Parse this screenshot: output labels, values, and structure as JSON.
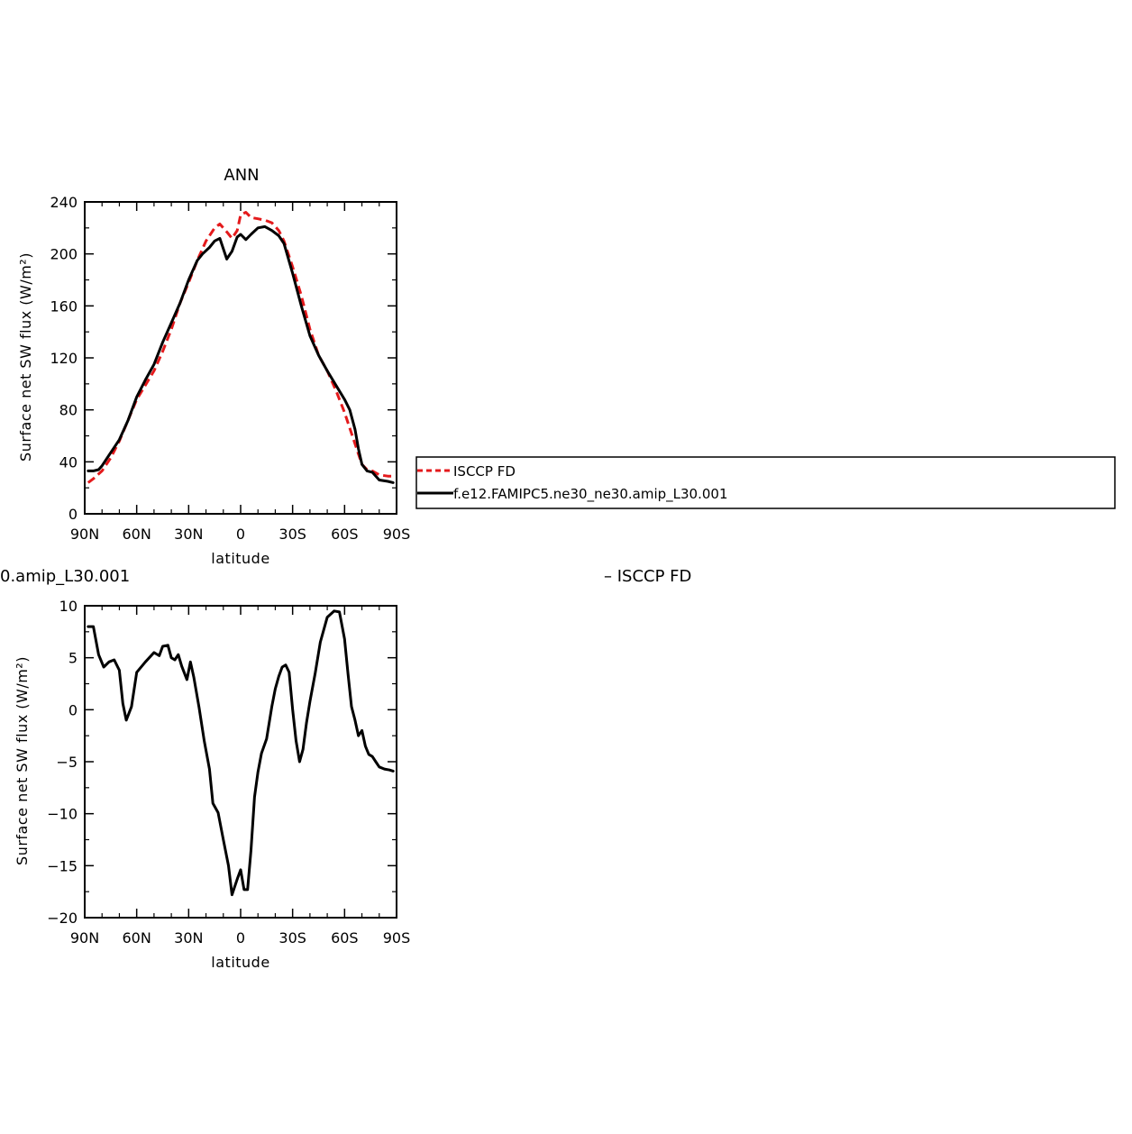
{
  "colors": {
    "model": "#000000",
    "obs": "#e41a1c",
    "background": "#ffffff"
  },
  "chart_data": [
    {
      "type": "line",
      "title": "ANN",
      "xlabel": "latitude",
      "ylabel": "Surface net SW flux (W/m²)",
      "xlim": [
        90,
        -90
      ],
      "ylim": [
        0,
        240
      ],
      "x_ticks": [
        90,
        60,
        30,
        0,
        -30,
        -60,
        -90
      ],
      "x_tick_labels": [
        "90N",
        "60N",
        "30N",
        "0",
        "30S",
        "60S",
        "90S"
      ],
      "y_ticks": [
        0,
        40,
        80,
        120,
        160,
        200,
        240
      ],
      "y_tick_labels": [
        "0",
        "40",
        "80",
        "120",
        "160",
        "200",
        "240"
      ],
      "grid": false,
      "legend": "right",
      "series": [
        {
          "name": "ISCCP FD",
          "style": "dashed",
          "color": "#e41a1c",
          "x": [
            88,
            85,
            80,
            75,
            70,
            65,
            60,
            55,
            50,
            45,
            40,
            35,
            30,
            25,
            20,
            15,
            12,
            8,
            5,
            2,
            0,
            -3,
            -6,
            -10,
            -14,
            -18,
            -22,
            -25,
            -30,
            -35,
            -40,
            -45,
            -50,
            -55,
            -60,
            -65,
            -70,
            -73,
            -76,
            -80,
            -85,
            -88
          ],
          "values": [
            24,
            27,
            33,
            43,
            56,
            72,
            88,
            99,
            110,
            125,
            142,
            162,
            178,
            195,
            210,
            220,
            223,
            217,
            212,
            218,
            230,
            232,
            228,
            227,
            226,
            224,
            218,
            210,
            190,
            168,
            142,
            122,
            110,
            95,
            78,
            58,
            38,
            34,
            33,
            30,
            29,
            29
          ]
        },
        {
          "name": "f.e12.FAMIPC5.ne30_ne30.amip_L30.001",
          "style": "solid",
          "color": "#000000",
          "x": [
            88,
            85,
            82,
            80,
            75,
            70,
            65,
            60,
            55,
            50,
            45,
            40,
            35,
            30,
            25,
            22,
            18,
            15,
            12,
            8,
            5,
            2,
            0,
            -3,
            -6,
            -10,
            -14,
            -18,
            -22,
            -25,
            -30,
            -35,
            -40,
            -45,
            -50,
            -55,
            -60,
            -63,
            -66,
            -68,
            -70,
            -73,
            -76,
            -80,
            -85,
            -88
          ],
          "values": [
            33,
            33,
            34,
            37,
            47,
            57,
            72,
            90,
            103,
            115,
            132,
            147,
            162,
            180,
            195,
            200,
            205,
            210,
            212,
            196,
            202,
            213,
            215,
            211,
            215,
            220,
            221,
            218,
            214,
            208,
            185,
            160,
            137,
            122,
            110,
            99,
            88,
            80,
            65,
            50,
            38,
            33,
            32,
            26,
            25,
            24
          ]
        }
      ]
    },
    {
      "type": "line",
      "title": "0.amip_L30.001",
      "title_right": "– ISCCP FD",
      "xlabel": "latitude",
      "ylabel": "Surface net SW flux (W/m²)",
      "xlim": [
        90,
        -90
      ],
      "ylim": [
        -20,
        10
      ],
      "x_ticks": [
        90,
        60,
        30,
        0,
        -30,
        -60,
        -90
      ],
      "x_tick_labels": [
        "90N",
        "60N",
        "30N",
        "0",
        "30S",
        "60S",
        "90S"
      ],
      "y_ticks": [
        -20,
        -15,
        -10,
        -5,
        0,
        5,
        10
      ],
      "y_tick_labels": [
        "−20",
        "−15",
        "−10",
        "−5",
        "0",
        "5",
        "10"
      ],
      "grid": false,
      "series": [
        {
          "style": "solid",
          "color": "#000000",
          "x": [
            88,
            85,
            82,
            79,
            76,
            73,
            70,
            68,
            66,
            63,
            60,
            55,
            50,
            47,
            45,
            42,
            40,
            38,
            36,
            34,
            31,
            29,
            27,
            24,
            21,
            18,
            16,
            13,
            10,
            7,
            5,
            2,
            0,
            -2,
            -4,
            -6,
            -8,
            -10,
            -12,
            -15,
            -18,
            -20,
            -22,
            -24,
            -26,
            -28,
            -30,
            -32,
            -34,
            -36,
            -38,
            -40,
            -43,
            -46,
            -50,
            -54,
            -57,
            -60,
            -62,
            -64,
            -66,
            -68,
            -70,
            -72,
            -74,
            -76,
            -78,
            -80,
            -83,
            -86,
            -88
          ],
          "values": [
            8,
            8,
            5.3,
            4.1,
            4.6,
            4.8,
            3.8,
            0.6,
            -1.0,
            0.3,
            3.6,
            4.6,
            5.5,
            5.2,
            6.1,
            6.2,
            5.0,
            4.8,
            5.3,
            4.2,
            2.9,
            4.6,
            3.1,
            0.2,
            -3.0,
            -5.7,
            -9.0,
            -9.9,
            -12.5,
            -15.0,
            -17.8,
            -16.3,
            -15.4,
            -17.3,
            -17.3,
            -13.5,
            -8.4,
            -6.0,
            -4.2,
            -2.8,
            0.3,
            2.0,
            3.2,
            4.1,
            4.3,
            3.6,
            0.0,
            -3.0,
            -5.0,
            -3.8,
            -1.3,
            0.8,
            3.5,
            6.5,
            8.9,
            9.5,
            9.4,
            6.8,
            3.4,
            0.3,
            -1.0,
            -2.5,
            -2.0,
            -3.5,
            -4.3,
            -4.5,
            -5.0,
            -5.5,
            -5.7,
            -5.8,
            -5.9
          ]
        }
      ]
    }
  ]
}
